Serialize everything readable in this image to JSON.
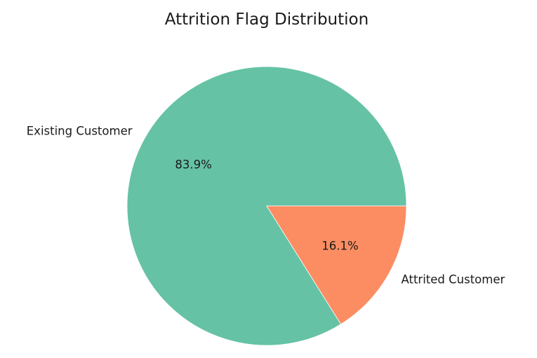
{
  "chart_data": {
    "type": "pie",
    "title": "Attrition Flag Distribution",
    "categories": [
      "Existing Customer",
      "Attrited Customer"
    ],
    "values": [
      83.9,
      16.1
    ],
    "value_labels": [
      "83.9%",
      "16.1%"
    ],
    "colors": [
      "#66c2a5",
      "#fc8d62"
    ],
    "start_angle_deg": 0,
    "direction": "counterclockwise",
    "legend": "none"
  }
}
